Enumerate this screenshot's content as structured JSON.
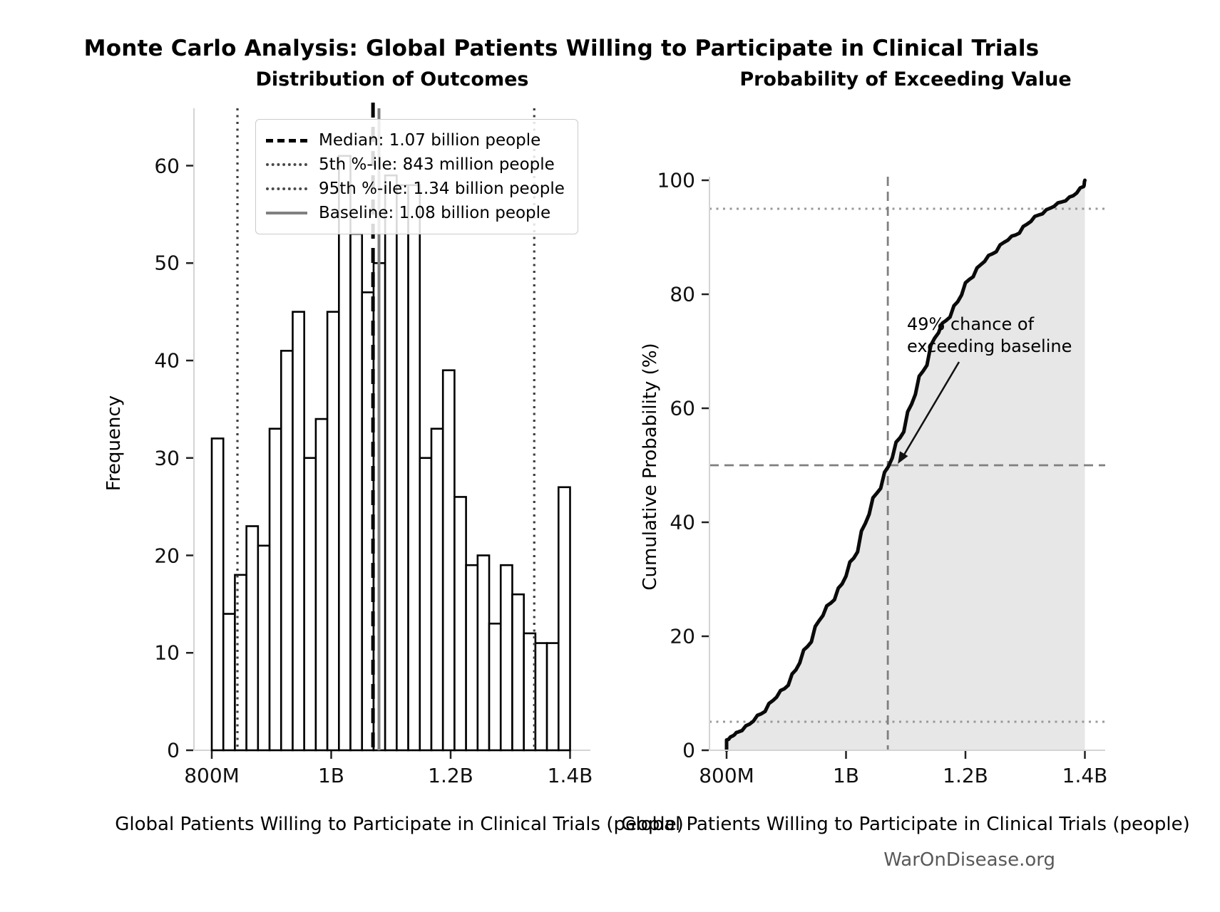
{
  "header": {
    "title": "Monte Carlo Analysis: Global Patients Willing to Participate in Clinical Trials"
  },
  "footer": {
    "text": "WarOnDisease.org"
  },
  "chart_data": [
    {
      "type": "bar",
      "title": "Distribution of Outcomes",
      "xlabel": "Global Patients Willing to Participate in Clinical Trials (people)",
      "ylabel": "Frequency",
      "bin_start_millions": 800,
      "bin_width_millions": 19.355,
      "values": [
        32,
        14,
        18,
        23,
        21,
        33,
        41,
        45,
        30,
        34,
        45,
        61,
        53,
        47,
        50,
        59,
        58,
        58,
        30,
        33,
        39,
        26,
        19,
        20,
        13,
        19,
        16,
        12,
        11,
        11,
        27
      ],
      "ylim": [
        0,
        66
      ],
      "y_ticks": [
        0,
        10,
        20,
        30,
        40,
        50,
        60
      ],
      "x_ticks": [
        {
          "m": 800,
          "label": "800M"
        },
        {
          "m": 1000,
          "label": "1B"
        },
        {
          "m": 1200,
          "label": "1.2B"
        },
        {
          "m": 1400,
          "label": "1.4B"
        }
      ],
      "ref_lines": {
        "median_millions": 1070,
        "p5_millions": 843,
        "p95_millions": 1340,
        "baseline_millions": 1080
      },
      "legend": [
        "Median: 1.07 billion people",
        "5th %-ile: 843 million people",
        "95th %-ile: 1.34 billion people",
        "Baseline: 1.08 billion people"
      ],
      "grid": false,
      "legend_position": "upper-left"
    },
    {
      "type": "line",
      "title": "Probability of Exceeding Value",
      "xlabel": "Global Patients Willing to Participate in Clinical Trials (people)",
      "ylabel": "Cumulative Probability (%)",
      "ylim": [
        0,
        100
      ],
      "y_ticks": [
        0,
        20,
        40,
        60,
        80,
        100
      ],
      "x_ticks": [
        {
          "m": 800,
          "label": "800M"
        },
        {
          "m": 1000,
          "label": "1B"
        },
        {
          "m": 1200,
          "label": "1.2B"
        },
        {
          "m": 1400,
          "label": "1.4B"
        }
      ],
      "points": [
        [
          800,
          0
        ],
        [
          800,
          1.8
        ],
        [
          810,
          2.5
        ],
        [
          819.4,
          3.2
        ],
        [
          838.7,
          4.6
        ],
        [
          858.1,
          6.4
        ],
        [
          877.4,
          8.7
        ],
        [
          896.8,
          10.8
        ],
        [
          916.1,
          14.1
        ],
        [
          935.5,
          18.2
        ],
        [
          954.8,
          22.7
        ],
        [
          974.2,
          25.8
        ],
        [
          993.5,
          29.2
        ],
        [
          1012.9,
          33.7
        ],
        [
          1032.3,
          39.8
        ],
        [
          1051.6,
          45.1
        ],
        [
          1071,
          49.8
        ],
        [
          1090.3,
          54.8
        ],
        [
          1109.7,
          60.7
        ],
        [
          1129,
          66.5
        ],
        [
          1148.4,
          72.3
        ],
        [
          1167.7,
          75.4
        ],
        [
          1187.1,
          78.7
        ],
        [
          1206.5,
          82.6
        ],
        [
          1225.8,
          85.2
        ],
        [
          1245.2,
          87.1
        ],
        [
          1264.5,
          89.1
        ],
        [
          1283.9,
          90.4
        ],
        [
          1303.2,
          92.3
        ],
        [
          1322.6,
          93.9
        ],
        [
          1341.9,
          95.1
        ],
        [
          1361.3,
          96.2
        ],
        [
          1380.6,
          97.3
        ],
        [
          1398,
          98.9
        ],
        [
          1400,
          100
        ]
      ],
      "crosshair": {
        "x_millions": 1070,
        "y_percent": 50
      },
      "dotted_percent_lines": [
        5,
        95
      ],
      "fill_region": {
        "from_millions": 800,
        "to_millions": 1400
      },
      "annotation": {
        "line1": "49% chance of",
        "line2": "exceeding baseline"
      },
      "grid": false
    }
  ],
  "colors": {
    "bar_fill": "#ffffff",
    "bar_stroke": "#000000",
    "median_line": "#000000",
    "baseline_line": "#7f7f7f",
    "percentile_dotted": "#3d3d3d",
    "cdf_curve": "#0a0a0a",
    "cdf_fill": "#e7e7e7",
    "crosshair_dashed": "#7f7f7f",
    "dotted_horizontal": "#999999",
    "spine": "#d4d4d4",
    "tick": "#222222",
    "footer_text": "#595959"
  }
}
